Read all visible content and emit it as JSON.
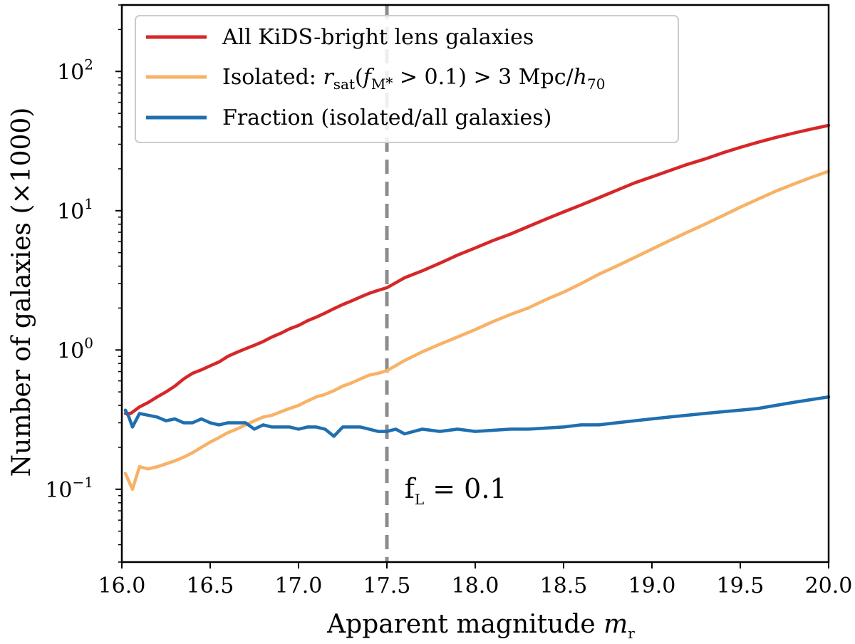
{
  "chart_data": {
    "type": "line",
    "title": "",
    "xlabel": "Apparent magnitude",
    "xlabel_symbol": "m",
    "xlabel_subscript": "r",
    "ylabel": "Number of galaxies (×1000)",
    "xlim": [
      16.0,
      20.0
    ],
    "ylim": [
      0.03,
      300
    ],
    "yscale": "log",
    "x_ticks": [
      16.0,
      16.5,
      17.0,
      17.5,
      18.0,
      18.5,
      19.0,
      19.5,
      20.0
    ],
    "x_tick_labels": [
      "16.0",
      "16.5",
      "17.0",
      "17.5",
      "18.0",
      "18.5",
      "19.0",
      "19.5",
      "20.0"
    ],
    "y_ticks": [
      {
        "value": 0.1,
        "base": "10",
        "exp": "−1"
      },
      {
        "value": 1,
        "base": "10",
        "exp": "0"
      },
      {
        "value": 10,
        "base": "10",
        "exp": "1"
      },
      {
        "value": 100,
        "base": "10",
        "exp": "2"
      }
    ],
    "legend_position": "upper-left",
    "series": [
      {
        "name": "All KiDS-bright lens galaxies",
        "color": "#d62728",
        "x": [
          16.02,
          16.05,
          16.1,
          16.15,
          16.2,
          16.25,
          16.3,
          16.35,
          16.4,
          16.45,
          16.5,
          16.55,
          16.6,
          16.65,
          16.7,
          16.75,
          16.8,
          16.85,
          16.9,
          16.95,
          17.0,
          17.05,
          17.1,
          17.15,
          17.2,
          17.25,
          17.3,
          17.35,
          17.4,
          17.45,
          17.5,
          17.6,
          17.7,
          17.8,
          17.9,
          18.0,
          18.1,
          18.2,
          18.3,
          18.4,
          18.5,
          18.6,
          18.7,
          18.8,
          18.9,
          19.0,
          19.1,
          19.2,
          19.3,
          19.4,
          19.5,
          19.6,
          19.7,
          19.8,
          19.9,
          20.0
        ],
        "y": [
          0.35,
          0.35,
          0.39,
          0.42,
          0.46,
          0.5,
          0.55,
          0.62,
          0.68,
          0.72,
          0.77,
          0.82,
          0.9,
          0.96,
          1.02,
          1.08,
          1.15,
          1.24,
          1.32,
          1.42,
          1.5,
          1.62,
          1.72,
          1.84,
          1.98,
          2.12,
          2.25,
          2.4,
          2.55,
          2.68,
          2.8,
          3.3,
          3.7,
          4.2,
          4.8,
          5.4,
          6.1,
          6.8,
          7.7,
          8.7,
          9.8,
          11.0,
          12.4,
          14.0,
          15.8,
          17.5,
          19.4,
          21.5,
          23.5,
          26.0,
          28.5,
          31.0,
          33.5,
          36.0,
          38.5,
          41.0
        ]
      },
      {
        "name": "Isolated: r_sat(f_M* > 0.1) > 3 Mpc/h_70",
        "color": "#f7b267",
        "x": [
          16.02,
          16.06,
          16.1,
          16.15,
          16.2,
          16.25,
          16.3,
          16.35,
          16.4,
          16.45,
          16.5,
          16.55,
          16.6,
          16.65,
          16.7,
          16.75,
          16.8,
          16.85,
          16.9,
          16.95,
          17.0,
          17.05,
          17.1,
          17.15,
          17.2,
          17.25,
          17.3,
          17.35,
          17.4,
          17.45,
          17.5,
          17.6,
          17.7,
          17.8,
          17.9,
          18.0,
          18.1,
          18.2,
          18.3,
          18.4,
          18.5,
          18.6,
          18.7,
          18.8,
          18.9,
          19.0,
          19.1,
          19.2,
          19.3,
          19.4,
          19.5,
          19.6,
          19.7,
          19.8,
          19.9,
          20.0
        ],
        "y": [
          0.13,
          0.1,
          0.145,
          0.14,
          0.145,
          0.152,
          0.16,
          0.17,
          0.183,
          0.2,
          0.218,
          0.235,
          0.255,
          0.27,
          0.29,
          0.31,
          0.33,
          0.34,
          0.36,
          0.38,
          0.4,
          0.43,
          0.46,
          0.48,
          0.51,
          0.55,
          0.58,
          0.62,
          0.66,
          0.68,
          0.71,
          0.84,
          0.97,
          1.1,
          1.24,
          1.4,
          1.6,
          1.8,
          2.0,
          2.3,
          2.6,
          3.0,
          3.5,
          4.0,
          4.6,
          5.3,
          6.1,
          7.0,
          8.0,
          9.2,
          10.6,
          12.1,
          13.8,
          15.5,
          17.3,
          19.2
        ]
      },
      {
        "name": "Fraction (isolated/all galaxies)",
        "color": "#1f6fb0",
        "x": [
          16.02,
          16.04,
          16.06,
          16.1,
          16.15,
          16.2,
          16.25,
          16.3,
          16.35,
          16.4,
          16.45,
          16.5,
          16.55,
          16.6,
          16.65,
          16.7,
          16.75,
          16.8,
          16.85,
          16.9,
          16.95,
          17.0,
          17.05,
          17.1,
          17.15,
          17.2,
          17.25,
          17.3,
          17.35,
          17.4,
          17.45,
          17.5,
          17.55,
          17.6,
          17.7,
          17.8,
          17.9,
          18.0,
          18.1,
          18.2,
          18.3,
          18.4,
          18.5,
          18.6,
          18.7,
          18.8,
          18.9,
          19.0,
          19.1,
          19.2,
          19.3,
          19.4,
          19.5,
          19.6,
          19.7,
          19.8,
          19.9,
          20.0
        ],
        "y": [
          0.37,
          0.33,
          0.28,
          0.35,
          0.34,
          0.33,
          0.31,
          0.32,
          0.3,
          0.3,
          0.32,
          0.3,
          0.29,
          0.3,
          0.3,
          0.3,
          0.27,
          0.29,
          0.28,
          0.28,
          0.28,
          0.27,
          0.28,
          0.28,
          0.27,
          0.24,
          0.28,
          0.28,
          0.28,
          0.27,
          0.26,
          0.26,
          0.27,
          0.25,
          0.27,
          0.26,
          0.27,
          0.26,
          0.265,
          0.27,
          0.27,
          0.275,
          0.28,
          0.29,
          0.29,
          0.3,
          0.31,
          0.32,
          0.33,
          0.34,
          0.35,
          0.36,
          0.37,
          0.38,
          0.4,
          0.42,
          0.44,
          0.46
        ]
      }
    ],
    "vertical_line": {
      "x": 17.5,
      "color": "#8c8c8c",
      "style": "dashed"
    },
    "annotation": {
      "text_main": "f",
      "text_sub": "L",
      "text_rest": " = 0.1",
      "x": 17.6,
      "y": 0.1
    }
  }
}
